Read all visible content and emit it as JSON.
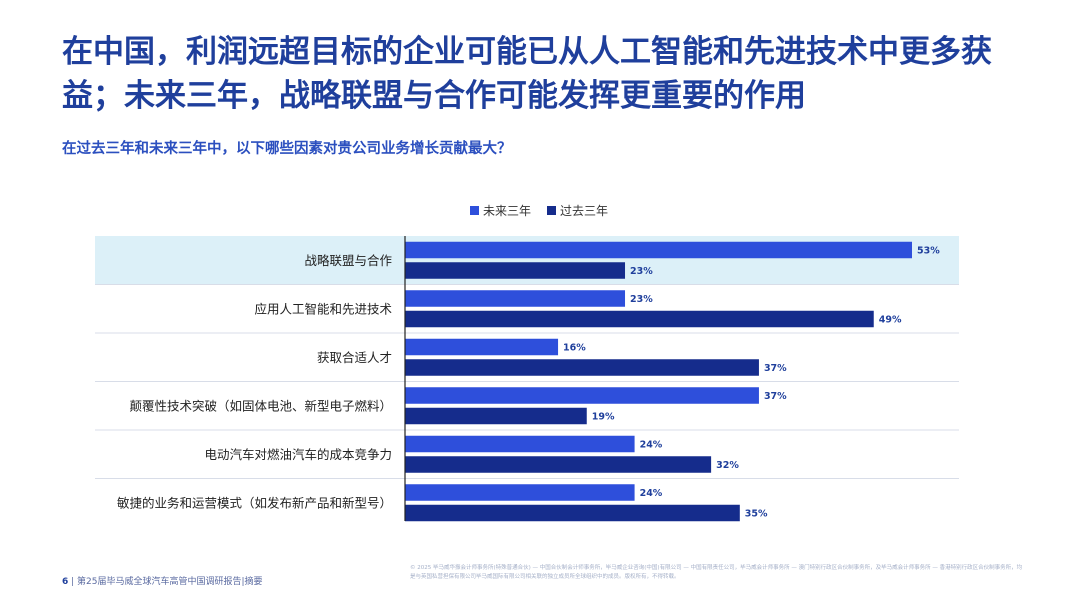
{
  "header": {
    "title": "在中国，利润远超目标的企业可能已从人工智能和先进技术中更多获益；未来三年，战略联盟与合作可能发挥更重要的作用",
    "question": "在过去三年和未来三年中，以下哪些因素对贵公司业务增长贡献最大？"
  },
  "colors": {
    "future": "#2e4fdb",
    "past": "#152c8c",
    "highlight": "#dcf0f8",
    "title": "#1f3f9c"
  },
  "chart_data": {
    "type": "bar",
    "orientation": "horizontal",
    "categories": [
      "战略联盟与合作",
      "应用人工智能和先进技术",
      "获取合适人才",
      "颠覆性技术突破（如固体电池、新型电子燃料）",
      "电动汽车对燃油汽车的成本竞争力",
      "敏捷的业务和运营模式（如发布新产品和新型号）"
    ],
    "series": [
      {
        "name": "未来三年",
        "values": [
          53,
          23,
          16,
          37,
          24,
          24
        ],
        "labels": [
          "53%",
          "23%",
          "16%",
          "37%",
          "24%",
          "24%"
        ]
      },
      {
        "name": "过去三年",
        "values": [
          23,
          49,
          37,
          19,
          32,
          35
        ],
        "labels": [
          "23%",
          "49%",
          "37%",
          "19%",
          "32%",
          "35%"
        ]
      }
    ],
    "xlim": [
      0,
      55
    ],
    "highlighted_category": "战略联盟与合作",
    "legend_position": "top-center"
  },
  "footer": {
    "page": "6",
    "report": "第25届毕马威全球汽车高管中国调研报告|摘要",
    "legal": "© 2025 毕马威华振会计师事务所(特殊普通合伙) — 中国合伙制会计师事务所，毕马威企业咨询(中国)有限公司 — 中国有限责任公司，毕马威会计师事务所 — 澳门特别行政区合伙制事务所，及毕马威会计师事务所 — 香港特别行政区合伙制事务所，均是与英国私营担保有限公司毕马威国际有限公司相关联的独立成员所全球组织中的成员。版权所有，不得转载。"
  }
}
